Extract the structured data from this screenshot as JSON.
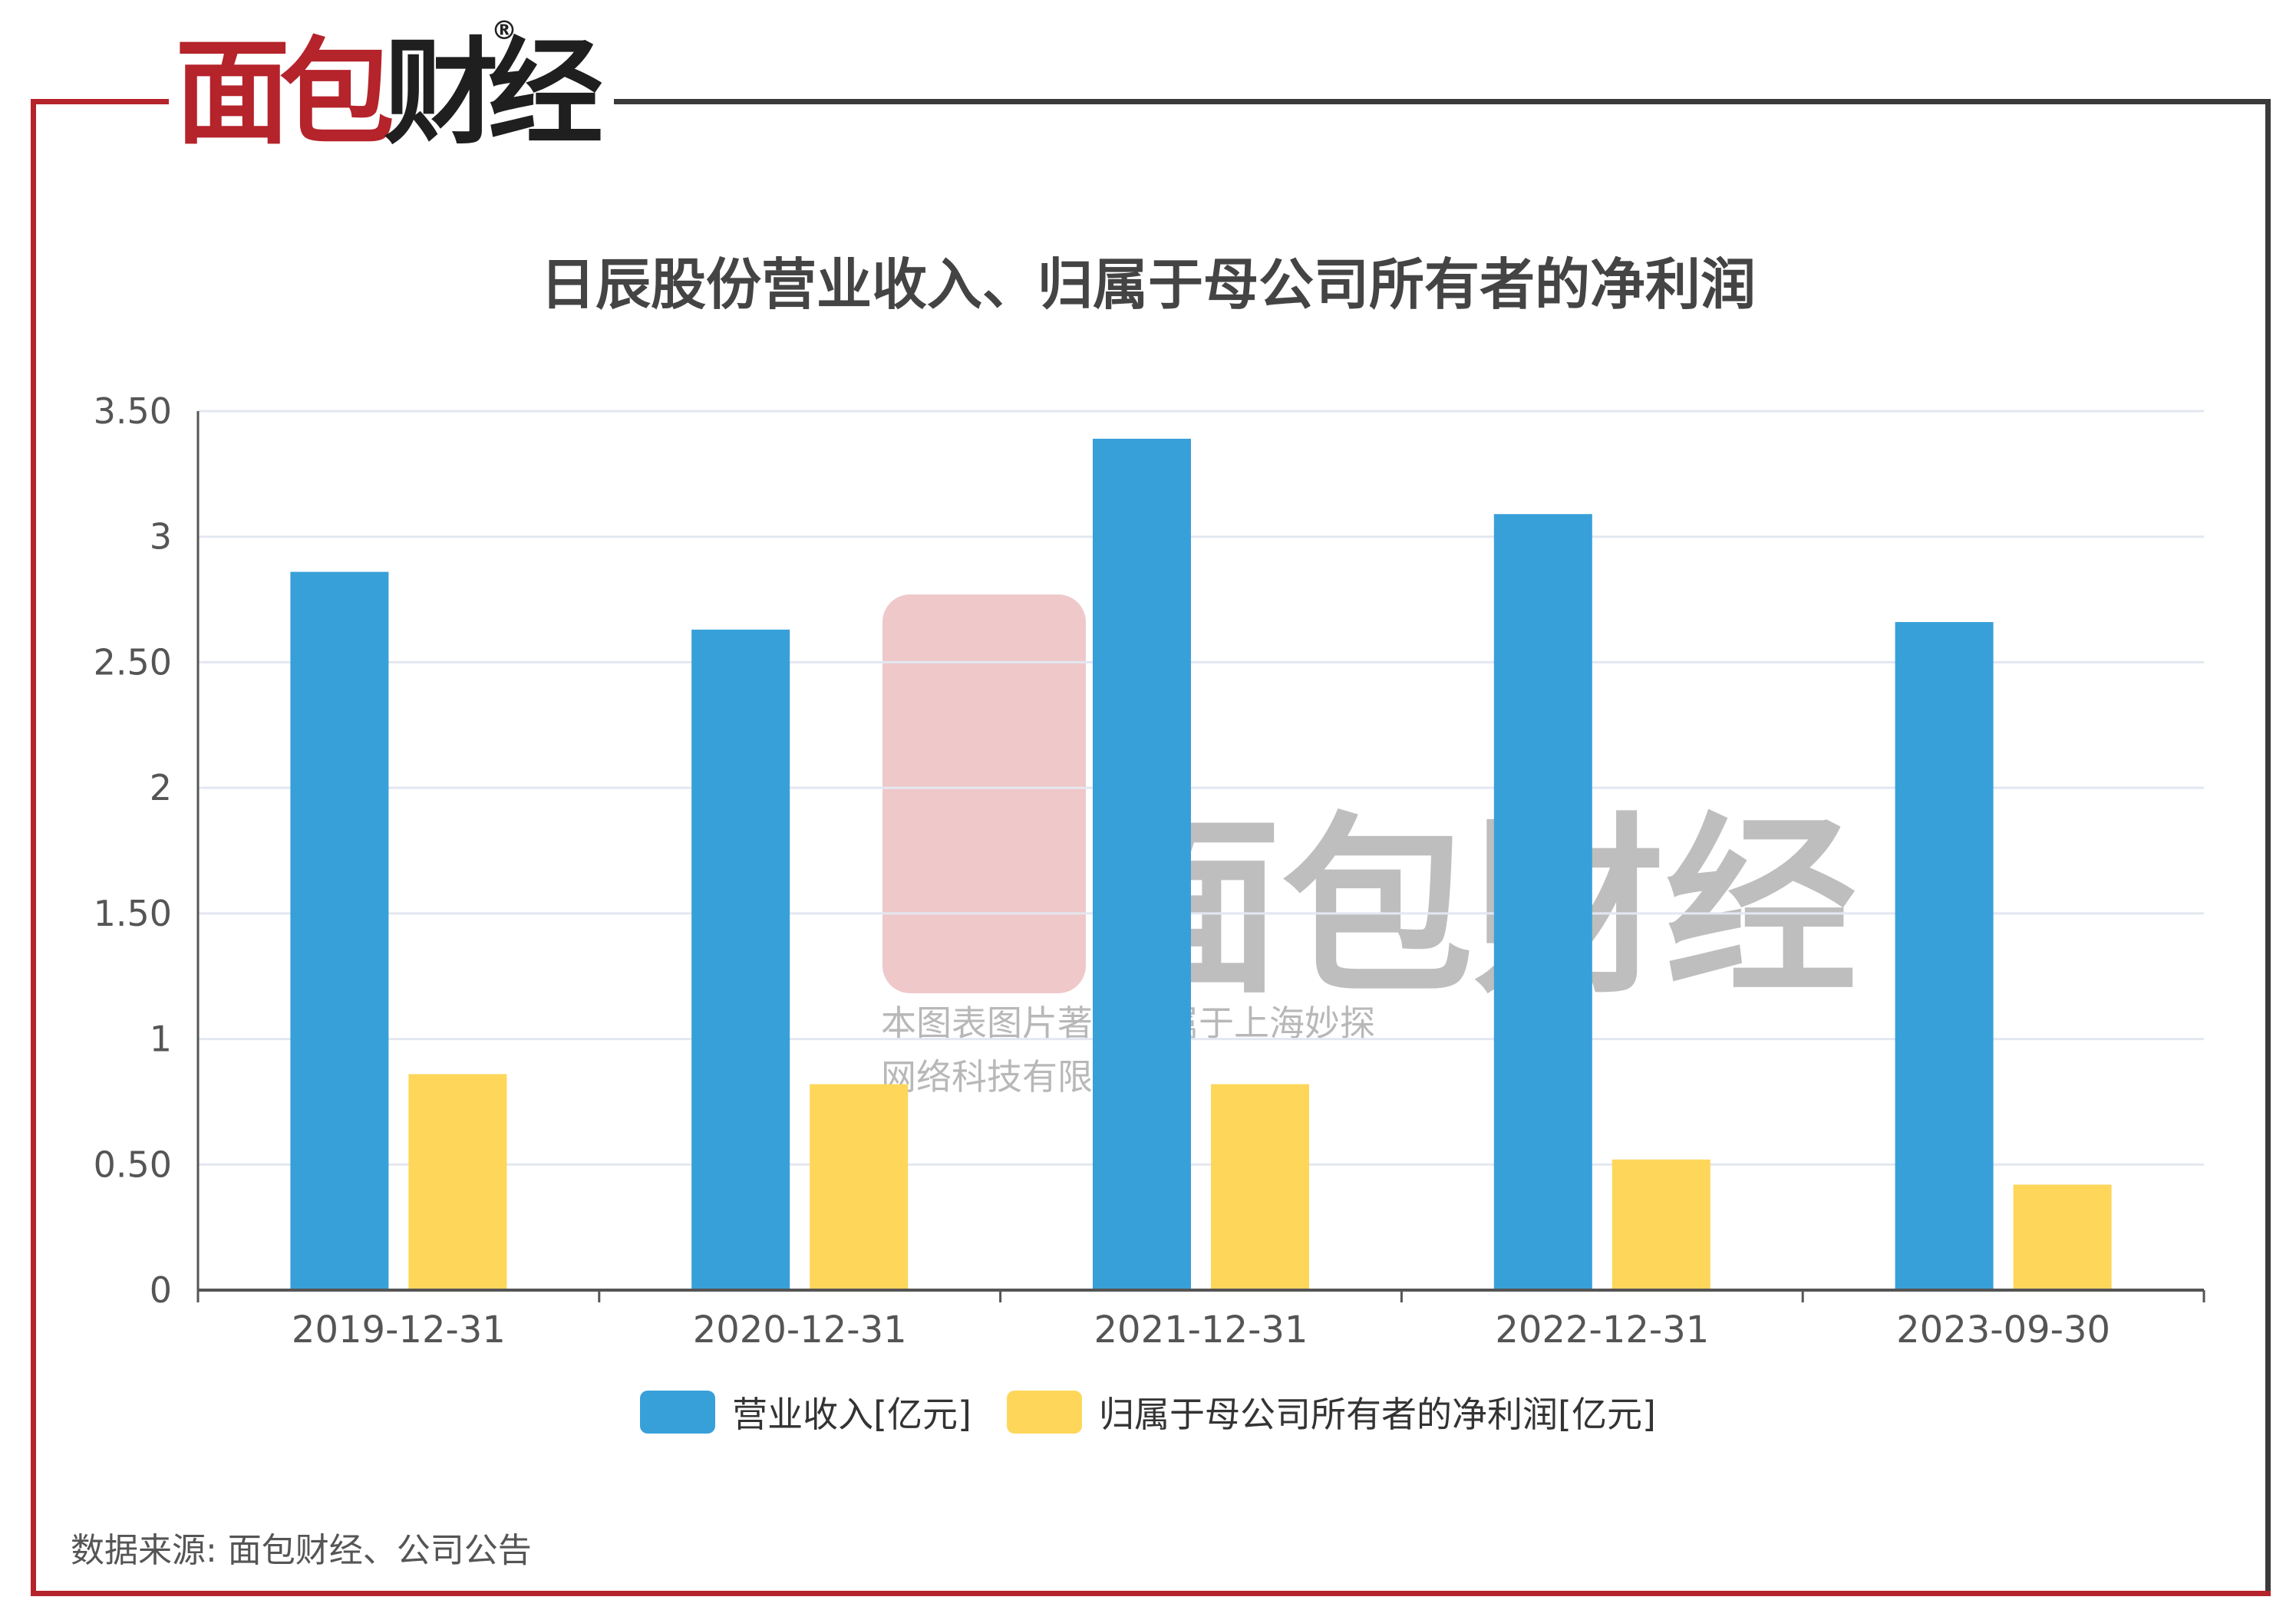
{
  "brand": {
    "logo_text_red": "面包",
    "logo_text_dark": "财经",
    "registered_mark": "®"
  },
  "watermark": {
    "logo_text": "面包财经",
    "line1": "本图表图片著作权属于上海妙探",
    "line2": "网络科技有限公司"
  },
  "source_text": "数据来源: 面包财经、公司公告",
  "colors": {
    "revenue": "#38a0d9",
    "net_profit": "#fed65a",
    "frame_red": "#b5232b",
    "frame_dark": "#3a3a3a"
  },
  "chart_data": {
    "type": "bar",
    "title": "日辰股份营业收入、归属于母公司所有者的净利润",
    "categories": [
      "2019-12-31",
      "2020-12-31",
      "2021-12-31",
      "2022-12-31",
      "2023-09-30"
    ],
    "series": [
      {
        "name": "营业收入[亿元]",
        "values": [
          2.86,
          2.63,
          3.39,
          3.09,
          2.66
        ]
      },
      {
        "name": "归属于母公司所有者的净利润[亿元]",
        "values": [
          0.86,
          0.82,
          0.82,
          0.52,
          0.42
        ]
      }
    ],
    "ylim": [
      0,
      3.5
    ],
    "y_ticks": [
      0,
      0.5,
      1,
      1.5,
      2,
      2.5,
      3,
      3.5
    ],
    "y_tick_labels": [
      "0",
      "0.50",
      "1",
      "1.50",
      "2",
      "2.50",
      "3",
      "3.50"
    ],
    "grid": true,
    "legend_position": "bottom-center"
  }
}
